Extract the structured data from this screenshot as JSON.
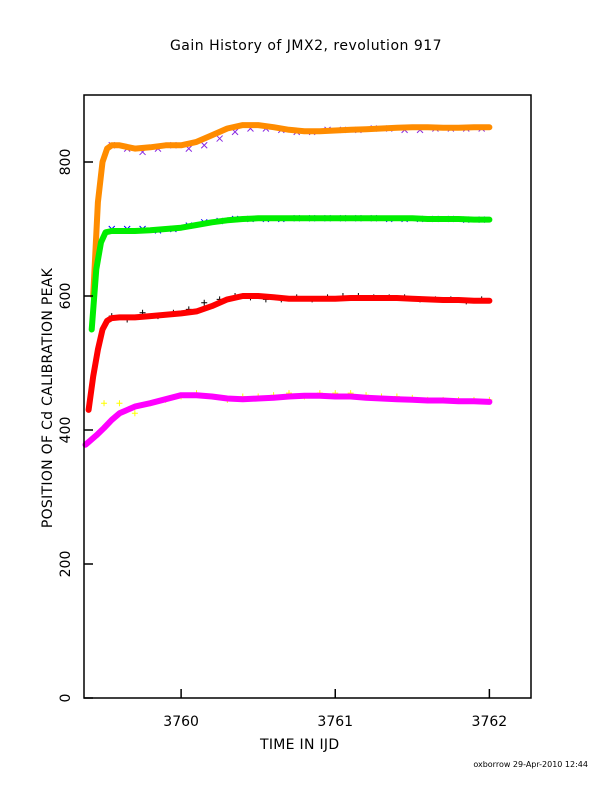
{
  "chart_data": {
    "type": "scatter",
    "title": "Gain History of JMX2, revolution 917",
    "xlabel": "TIME IN IJD",
    "ylabel": "POSITION OF Cd CALIBRATION PEAK",
    "xlim": [
      3759.37,
      3762.27
    ],
    "ylim": [
      0,
      900
    ],
    "xticks": [
      3760,
      3761,
      3762
    ],
    "yticks": [
      0,
      200,
      400,
      600,
      800
    ],
    "grid": false,
    "legend": "none",
    "footer": "oxborrow 29-Apr-2010 12:44",
    "series": [
      {
        "color": "#8a2be2",
        "marker": "x",
        "x": [
          3759.55,
          3759.65,
          3759.75,
          3759.85,
          3759.95,
          3760.05,
          3760.15,
          3760.25,
          3760.35,
          3760.45,
          3760.55,
          3760.65,
          3760.75,
          3760.85,
          3760.95,
          3761.05,
          3761.15,
          3761.25,
          3761.35,
          3761.45,
          3761.55,
          3761.65,
          3761.75,
          3761.85,
          3761.95
        ],
        "y": [
          825,
          820,
          815,
          820,
          825,
          820,
          825,
          835,
          845,
          850,
          850,
          848,
          845,
          845,
          848,
          848,
          848,
          850,
          850,
          848,
          848,
          850,
          850,
          850,
          850
        ]
      },
      {
        "color": "#ff8c00",
        "marker": "fit",
        "x": [
          3759.43,
          3759.46,
          3759.49,
          3759.52,
          3759.55,
          3759.6,
          3759.7,
          3759.8,
          3759.9,
          3760.0,
          3760.1,
          3760.2,
          3760.3,
          3760.4,
          3760.5,
          3760.6,
          3760.7,
          3760.8,
          3760.9,
          3761.0,
          3761.1,
          3761.2,
          3761.3,
          3761.4,
          3761.5,
          3761.6,
          3761.7,
          3761.8,
          3761.9,
          3762.0
        ],
        "y": [
          600,
          740,
          800,
          820,
          825,
          825,
          820,
          822,
          825,
          825,
          830,
          840,
          850,
          855,
          855,
          852,
          848,
          846,
          846,
          847,
          848,
          849,
          850,
          851,
          852,
          852,
          851,
          851,
          852,
          852
        ]
      },
      {
        "color": "#0000ff",
        "marker": "x",
        "x": [
          3759.55,
          3759.65,
          3759.75,
          3759.85,
          3759.95,
          3760.05,
          3760.15,
          3760.25,
          3760.35,
          3760.45,
          3760.55,
          3760.65,
          3760.75,
          3760.85,
          3760.95,
          3761.05,
          3761.15,
          3761.25,
          3761.35,
          3761.45,
          3761.55,
          3761.65,
          3761.75,
          3761.85,
          3761.95
        ],
        "y": [
          700,
          700,
          700,
          698,
          700,
          705,
          710,
          712,
          715,
          715,
          715,
          715,
          716,
          716,
          716,
          716,
          716,
          716,
          715,
          715,
          715,
          715,
          715,
          714,
          714
        ]
      },
      {
        "color": "#00ee00",
        "marker": "fit",
        "x": [
          3759.42,
          3759.45,
          3759.48,
          3759.51,
          3759.55,
          3759.6,
          3759.7,
          3759.8,
          3759.9,
          3760.0,
          3760.1,
          3760.2,
          3760.3,
          3760.4,
          3760.5,
          3760.6,
          3760.7,
          3760.8,
          3760.9,
          3761.0,
          3761.1,
          3761.2,
          3761.3,
          3761.4,
          3761.5,
          3761.6,
          3761.7,
          3761.8,
          3761.9,
          3762.0
        ],
        "y": [
          550,
          640,
          680,
          695,
          697,
          697,
          697,
          698,
          700,
          702,
          706,
          710,
          713,
          715,
          716,
          716,
          716,
          716,
          716,
          716,
          716,
          716,
          716,
          716,
          716,
          715,
          715,
          715,
          714,
          714
        ]
      },
      {
        "color": "#000000",
        "marker": "+",
        "x": [
          3759.55,
          3759.65,
          3759.75,
          3759.85,
          3759.95,
          3760.05,
          3760.15,
          3760.25,
          3760.35,
          3760.45,
          3760.55,
          3760.65,
          3760.75,
          3760.85,
          3760.95,
          3761.05,
          3761.15,
          3761.25,
          3761.35,
          3761.45,
          3761.55,
          3761.65,
          3761.75,
          3761.85,
          3761.95
        ],
        "y": [
          570,
          565,
          575,
          570,
          575,
          580,
          590,
          595,
          600,
          598,
          595,
          595,
          598,
          595,
          598,
          600,
          600,
          598,
          598,
          598,
          595,
          595,
          595,
          592,
          595
        ]
      },
      {
        "color": "#ff0000",
        "marker": "fit",
        "x": [
          3759.4,
          3759.43,
          3759.46,
          3759.49,
          3759.52,
          3759.55,
          3759.6,
          3759.7,
          3759.8,
          3759.9,
          3760.0,
          3760.1,
          3760.2,
          3760.3,
          3760.4,
          3760.5,
          3760.6,
          3760.7,
          3760.8,
          3760.9,
          3761.0,
          3761.1,
          3761.2,
          3761.3,
          3761.4,
          3761.5,
          3761.6,
          3761.7,
          3761.8,
          3761.9,
          3762.0
        ],
        "y": [
          430,
          480,
          520,
          550,
          563,
          567,
          568,
          568,
          570,
          572,
          574,
          577,
          585,
          595,
          600,
          600,
          598,
          596,
          596,
          596,
          596,
          597,
          597,
          597,
          597,
          596,
          595,
          594,
          594,
          593,
          593
        ]
      },
      {
        "color": "#ffff00",
        "marker": "+",
        "x": [
          3759.5,
          3759.6,
          3759.7,
          3759.8,
          3759.9,
          3760.0,
          3760.1,
          3760.2,
          3760.3,
          3760.4,
          3760.5,
          3760.6,
          3760.7,
          3760.8,
          3760.9,
          3761.0,
          3761.1,
          3761.2,
          3761.3,
          3761.4,
          3761.5,
          3761.6,
          3761.7,
          3761.8,
          3761.9,
          3762.0
        ],
        "y": [
          440,
          440,
          425,
          440,
          445,
          450,
          455,
          450,
          445,
          450,
          450,
          452,
          455,
          450,
          455,
          455,
          455,
          452,
          450,
          450,
          448,
          445,
          445,
          445,
          445,
          445
        ]
      },
      {
        "color": "#ff00ff",
        "marker": "fit",
        "x": [
          3759.38,
          3759.4,
          3759.45,
          3759.5,
          3759.55,
          3759.6,
          3759.7,
          3759.8,
          3759.9,
          3760.0,
          3760.1,
          3760.2,
          3760.3,
          3760.4,
          3760.5,
          3760.6,
          3760.7,
          3760.8,
          3760.9,
          3761.0,
          3761.1,
          3761.2,
          3761.3,
          3761.4,
          3761.5,
          3761.6,
          3761.7,
          3761.8,
          3761.9,
          3762.0
        ],
        "y": [
          378,
          382,
          392,
          403,
          415,
          425,
          435,
          440,
          446,
          452,
          452,
          450,
          447,
          446,
          447,
          448,
          450,
          451,
          451,
          450,
          450,
          448,
          447,
          446,
          445,
          444,
          444,
          443,
          443,
          442
        ]
      }
    ]
  }
}
